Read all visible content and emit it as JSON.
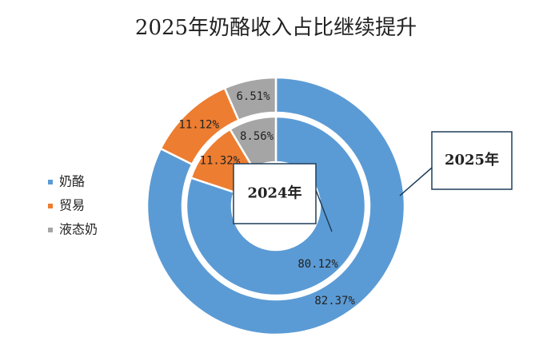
{
  "chart_data": {
    "type": "pie",
    "title": "2025年奶酪收入占比继续提升",
    "categories": [
      "奶酪",
      "贸易",
      "液态奶"
    ],
    "colors": [
      "#5b9bd5",
      "#ed7d31",
      "#a5a5a5"
    ],
    "legend": "left",
    "series": [
      {
        "name": "2024年",
        "values": [
          80.12,
          11.32,
          8.56
        ],
        "value_labels": [
          "80.12%",
          "11.32%",
          "8.56%"
        ]
      },
      {
        "name": "2025年",
        "values": [
          82.37,
          11.12,
          6.51
        ],
        "value_labels": [
          "82.37%",
          "11.12%",
          "6.51%"
        ]
      }
    ]
  }
}
